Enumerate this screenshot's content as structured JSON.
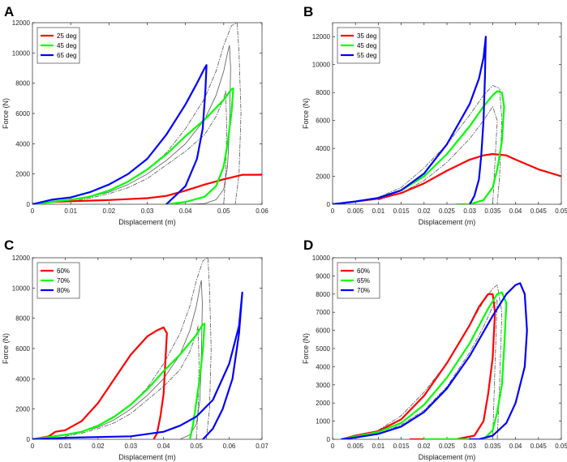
{
  "chart_data": [
    {
      "type": "line",
      "panel_label": "A",
      "xlabel": "Displacement (m)",
      "ylabel": "Force (N)",
      "xlim": [
        0,
        0.06
      ],
      "ylim": [
        0,
        12000
      ],
      "xticks": [
        0,
        0.01,
        0.02,
        0.03,
        0.04,
        0.05,
        0.06
      ],
      "xtick_labels": [
        "0",
        "0.01",
        "0.02",
        "0.03",
        "0.04",
        "0.05",
        "0.06"
      ],
      "yticks": [
        0,
        2000,
        4000,
        6000,
        8000,
        10000,
        12000
      ],
      "ytick_labels": [
        "0",
        "2000",
        "4000",
        "6000",
        "8000",
        "10000",
        "12000"
      ],
      "legend": "top-left",
      "series": [
        {
          "name": "25 deg",
          "color": "#ff0000",
          "x": [
            0,
            0.005,
            0.01,
            0.02,
            0.03,
            0.035,
            0.04,
            0.045,
            0.05,
            0.055,
            0.06
          ],
          "y": [
            0,
            150,
            200,
            280,
            400,
            550,
            900,
            1300,
            1650,
            1950,
            1950
          ]
        },
        {
          "name": "45 deg",
          "color": "#00ff00",
          "x": [
            0,
            0.005,
            0.01,
            0.015,
            0.02,
            0.025,
            0.03,
            0.035,
            0.04,
            0.045,
            0.05,
            0.052,
            0.0525,
            0.052,
            0.051,
            0.05,
            0.048,
            0.045,
            0.04,
            0.035
          ],
          "y": [
            0,
            150,
            300,
            500,
            900,
            1500,
            2300,
            3300,
            4500,
            5600,
            6900,
            7600,
            7650,
            6000,
            4000,
            2500,
            1200,
            500,
            150,
            0
          ]
        },
        {
          "name": "65 deg",
          "color": "#0000ff",
          "x": [
            0,
            0.005,
            0.01,
            0.015,
            0.02,
            0.025,
            0.03,
            0.035,
            0.04,
            0.043,
            0.045,
            0.0455,
            0.0452,
            0.0445,
            0.043,
            0.04,
            0.035
          ],
          "y": [
            0,
            300,
            450,
            800,
            1300,
            2000,
            3000,
            4600,
            6600,
            8000,
            9000,
            9200,
            7500,
            5000,
            3000,
            1200,
            0
          ]
        },
        {
          "name": "ref",
          "color": "#555555",
          "style": "solid",
          "legend": false,
          "x": [
            0.005,
            0.01,
            0.015,
            0.02,
            0.025,
            0.03,
            0.035,
            0.04,
            0.045,
            0.048,
            0.05,
            0.051,
            0.0515,
            0.0518,
            0.0515,
            0.051,
            0.05,
            0.048,
            0.045,
            0.04,
            0.035
          ],
          "y": [
            200,
            300,
            500,
            800,
            1300,
            2000,
            2900,
            4000,
            5600,
            7200,
            8800,
            10000,
            10500,
            9000,
            5000,
            2500,
            1000,
            300,
            50,
            0,
            0
          ]
        },
        {
          "name": "ref-upper",
          "color": "#555555",
          "style": "dashdot",
          "legend": false,
          "x": [
            0.01,
            0.015,
            0.02,
            0.025,
            0.03,
            0.035,
            0.04,
            0.045,
            0.048,
            0.05,
            0.052,
            0.0535,
            0.054,
            0.0545,
            0.054,
            0.053
          ],
          "y": [
            300,
            500,
            900,
            1500,
            2300,
            3400,
            5000,
            7000,
            8800,
            10500,
            11800,
            12000,
            10000,
            6000,
            2000,
            0
          ]
        },
        {
          "name": "ref-lower",
          "color": "#555555",
          "style": "dashdot",
          "legend": false,
          "x": [
            0.01,
            0.015,
            0.02,
            0.025,
            0.03,
            0.035,
            0.04,
            0.045,
            0.048,
            0.05,
            0.0505,
            0.0508,
            0.0505,
            0.05
          ],
          "y": [
            200,
            400,
            700,
            1100,
            1700,
            2600,
            3500,
            4600,
            5800,
            7000,
            7500,
            5000,
            2000,
            0
          ]
        }
      ]
    },
    {
      "type": "line",
      "panel_label": "B",
      "xlabel": "Displacement (m)",
      "ylabel": "Force (N)",
      "xlim": [
        0,
        0.05
      ],
      "ylim": [
        0,
        13000
      ],
      "xticks": [
        0,
        0.005,
        0.01,
        0.015,
        0.02,
        0.025,
        0.03,
        0.035,
        0.04,
        0.045,
        0.05
      ],
      "xtick_labels": [
        "0",
        "0.005",
        "0.01",
        "0.015",
        "0.02",
        "0.025",
        "0.03",
        "0.035",
        "0.04",
        "0.045",
        "0.05"
      ],
      "yticks": [
        0,
        2000,
        4000,
        6000,
        8000,
        10000,
        12000
      ],
      "ytick_labels": [
        "0",
        "2000",
        "4000",
        "6000",
        "8000",
        "10000",
        "12000"
      ],
      "legend": "top-left",
      "series": [
        {
          "name": "35 deg",
          "color": "#ff0000",
          "x": [
            0,
            0.005,
            0.01,
            0.015,
            0.02,
            0.025,
            0.03,
            0.033,
            0.035,
            0.038,
            0.04,
            0.045,
            0.05
          ],
          "y": [
            0,
            200,
            400,
            800,
            1500,
            2400,
            3200,
            3500,
            3600,
            3500,
            3200,
            2500,
            2000
          ]
        },
        {
          "name": "45 deg",
          "color": "#00ff00",
          "x": [
            0,
            0.005,
            0.01,
            0.015,
            0.02,
            0.025,
            0.03,
            0.033,
            0.035,
            0.036,
            0.037,
            0.0375,
            0.037,
            0.036,
            0.035,
            0.033,
            0.03,
            0.027
          ],
          "y": [
            0,
            200,
            450,
            1000,
            2000,
            3600,
            5600,
            7000,
            7800,
            8100,
            8000,
            7000,
            4500,
            2500,
            1200,
            300,
            0,
            0
          ]
        },
        {
          "name": "55 deg",
          "color": "#0000ff",
          "x": [
            0,
            0.005,
            0.01,
            0.015,
            0.02,
            0.025,
            0.03,
            0.032,
            0.033,
            0.0335,
            0.0333,
            0.033,
            0.0325,
            0.032,
            0.031,
            0.03
          ],
          "y": [
            0,
            200,
            450,
            1000,
            2200,
            4300,
            7200,
            9000,
            10500,
            12000,
            9000,
            6000,
            3500,
            1800,
            600,
            0
          ]
        },
        {
          "name": "ref-upper",
          "color": "#555555",
          "style": "dashdot",
          "legend": false,
          "x": [
            0.01,
            0.015,
            0.02,
            0.025,
            0.03,
            0.033,
            0.035,
            0.0365,
            0.037,
            0.0365,
            0.036
          ],
          "y": [
            500,
            1200,
            2600,
            4300,
            6400,
            7800,
            8500,
            8300,
            6000,
            2000,
            0
          ]
        },
        {
          "name": "ref-lower",
          "color": "#555555",
          "style": "dashdot",
          "legend": false,
          "x": [
            0.01,
            0.015,
            0.02,
            0.025,
            0.03,
            0.033,
            0.035,
            0.036,
            0.0355,
            0.035
          ],
          "y": [
            300,
            800,
            1700,
            3000,
            4700,
            6000,
            7000,
            6000,
            3000,
            0
          ]
        }
      ]
    },
    {
      "type": "line",
      "panel_label": "C",
      "xlabel": "Displacement (m)",
      "ylabel": "Force (N)",
      "xlim": [
        0,
        0.07
      ],
      "ylim": [
        0,
        12000
      ],
      "xticks": [
        0,
        0.01,
        0.02,
        0.03,
        0.04,
        0.05,
        0.06,
        0.07
      ],
      "xtick_labels": [
        "0",
        "0.01",
        "0.02",
        "0.03",
        "0.04",
        "0.05",
        "0.06",
        "0.07"
      ],
      "yticks": [
        0,
        2000,
        4000,
        6000,
        8000,
        10000,
        12000
      ],
      "ytick_labels": [
        "0",
        "2000",
        "4000",
        "6000",
        "8000",
        "10000",
        "12000"
      ],
      "legend": "top-left",
      "series": [
        {
          "name": "60%",
          "color": "#ff0000",
          "x": [
            0,
            0.005,
            0.007,
            0.01,
            0.015,
            0.02,
            0.025,
            0.03,
            0.035,
            0.038,
            0.04,
            0.041,
            0.0405,
            0.04,
            0.039,
            0.038,
            0.037
          ],
          "y": [
            0,
            200,
            500,
            600,
            1200,
            2400,
            4000,
            5600,
            6800,
            7200,
            7400,
            7000,
            5000,
            3000,
            1500,
            400,
            0
          ]
        },
        {
          "name": "70%",
          "color": "#00ff00",
          "x": [
            0,
            0.005,
            0.01,
            0.015,
            0.02,
            0.025,
            0.03,
            0.035,
            0.04,
            0.045,
            0.05,
            0.052,
            0.0525,
            0.052,
            0.051,
            0.05,
            0.049,
            0.048
          ],
          "y": [
            0,
            150,
            300,
            500,
            900,
            1500,
            2300,
            3300,
            4500,
            5600,
            6900,
            7600,
            7650,
            6000,
            4000,
            2500,
            1000,
            0
          ]
        },
        {
          "name": "80%",
          "color": "#0000ff",
          "x": [
            0,
            0.005,
            0.01,
            0.02,
            0.03,
            0.04,
            0.045,
            0.05,
            0.055,
            0.06,
            0.063,
            0.064,
            0.063,
            0.061,
            0.058,
            0.055,
            0.052
          ],
          "y": [
            0,
            50,
            100,
            150,
            200,
            500,
            900,
            1500,
            2600,
            5000,
            7500,
            9700,
            7000,
            4000,
            2000,
            700,
            0
          ]
        },
        {
          "name": "ref",
          "color": "#555555",
          "style": "solid",
          "legend": false,
          "x": [
            0.005,
            0.01,
            0.015,
            0.02,
            0.025,
            0.03,
            0.035,
            0.04,
            0.045,
            0.048,
            0.05,
            0.051,
            0.0515,
            0.0518,
            0.0515,
            0.051,
            0.05,
            0.048,
            0.045
          ],
          "y": [
            200,
            300,
            500,
            800,
            1300,
            2000,
            2900,
            4000,
            5600,
            7200,
            8800,
            10000,
            10500,
            9000,
            5000,
            2500,
            1000,
            300,
            0
          ]
        },
        {
          "name": "ref-upper",
          "color": "#555555",
          "style": "dashdot",
          "legend": false,
          "x": [
            0.01,
            0.015,
            0.02,
            0.025,
            0.03,
            0.035,
            0.04,
            0.045,
            0.048,
            0.05,
            0.052,
            0.0535,
            0.054,
            0.0545,
            0.054,
            0.053
          ],
          "y": [
            300,
            500,
            900,
            1500,
            2300,
            3400,
            5000,
            7000,
            8800,
            10500,
            11800,
            12000,
            10000,
            6000,
            2000,
            0
          ]
        },
        {
          "name": "ref-lower",
          "color": "#555555",
          "style": "dashdot",
          "legend": false,
          "x": [
            0.01,
            0.015,
            0.02,
            0.025,
            0.03,
            0.035,
            0.04,
            0.045,
            0.048,
            0.05,
            0.0505,
            0.0508,
            0.0505,
            0.05
          ],
          "y": [
            200,
            400,
            700,
            1100,
            1700,
            2600,
            3500,
            4600,
            5800,
            7000,
            7500,
            5000,
            2000,
            0
          ]
        }
      ]
    },
    {
      "type": "line",
      "panel_label": "D",
      "xlabel": "Displacement (m)",
      "ylabel": "Force (N)",
      "xlim": [
        0,
        0.05
      ],
      "ylim": [
        0,
        10000
      ],
      "xticks": [
        0,
        0.005,
        0.01,
        0.015,
        0.02,
        0.025,
        0.03,
        0.035,
        0.04,
        0.045,
        0.05
      ],
      "xtick_labels": [
        "0",
        "0.005",
        "0.01",
        "0.015",
        "0.02",
        "0.025",
        "0.03",
        "0.035",
        "0.04",
        "0.045",
        "0.05"
      ],
      "yticks": [
        0,
        1000,
        2000,
        3000,
        4000,
        5000,
        6000,
        7000,
        8000,
        9000,
        10000
      ],
      "ytick_labels": [
        "0",
        "1000",
        "2000",
        "3000",
        "4000",
        "5000",
        "6000",
        "7000",
        "8000",
        "9000",
        "10000"
      ],
      "legend": "top-left",
      "series": [
        {
          "name": "60%",
          "color": "#ff0000",
          "x": [
            0.002,
            0.005,
            0.01,
            0.015,
            0.02,
            0.025,
            0.03,
            0.032,
            0.034,
            0.035,
            0.0355,
            0.035,
            0.034,
            0.033,
            0.031,
            0.027,
            0.02,
            0.017
          ],
          "y": [
            0,
            200,
            450,
            1100,
            2400,
            4200,
            6300,
            7300,
            8000,
            8000,
            7000,
            4500,
            2500,
            1000,
            200,
            0,
            0,
            0
          ]
        },
        {
          "name": "65%",
          "color": "#00ff00",
          "x": [
            0.002,
            0.005,
            0.01,
            0.015,
            0.02,
            0.025,
            0.03,
            0.034,
            0.036,
            0.037,
            0.038,
            0.0375,
            0.037,
            0.036,
            0.035,
            0.033,
            0.03,
            0.025,
            0.02
          ],
          "y": [
            0,
            150,
            400,
            900,
            1900,
            3400,
            5300,
            7200,
            8000,
            8100,
            7500,
            5000,
            3000,
            1500,
            500,
            0,
            0,
            0,
            0
          ]
        },
        {
          "name": "70%",
          "color": "#0000ff",
          "x": [
            0.002,
            0.005,
            0.01,
            0.015,
            0.02,
            0.025,
            0.03,
            0.035,
            0.038,
            0.04,
            0.041,
            0.042,
            0.0425,
            0.042,
            0.04,
            0.038,
            0.035,
            0.032,
            0.03
          ],
          "y": [
            0,
            100,
            300,
            700,
            1500,
            2800,
            4600,
            6800,
            8000,
            8500,
            8600,
            8000,
            6000,
            4000,
            2000,
            900,
            200,
            0,
            0
          ]
        },
        {
          "name": "ref-upper",
          "color": "#555555",
          "style": "dashdot",
          "legend": false,
          "x": [
            0.01,
            0.015,
            0.02,
            0.025,
            0.03,
            0.033,
            0.035,
            0.036,
            0.037,
            0.0365,
            0.036
          ],
          "y": [
            500,
            1300,
            2600,
            4200,
            6300,
            7600,
            8300,
            8500,
            7000,
            3000,
            0
          ]
        },
        {
          "name": "ref-lower",
          "color": "#555555",
          "style": "dashdot",
          "legend": false,
          "x": [
            0.01,
            0.015,
            0.02,
            0.025,
            0.03,
            0.033,
            0.035,
            0.036,
            0.0355,
            0.035
          ],
          "y": [
            300,
            800,
            1600,
            2900,
            4800,
            6200,
            7300,
            7700,
            4000,
            0
          ]
        }
      ]
    }
  ]
}
